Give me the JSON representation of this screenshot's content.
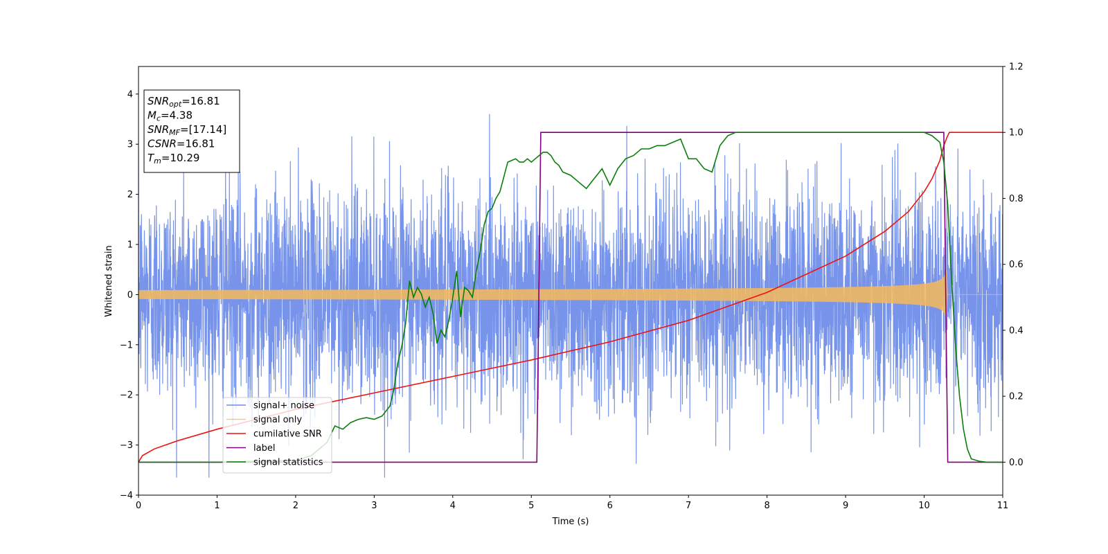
{
  "chart_data": {
    "type": "line",
    "xlabel": "Time (s)",
    "ylabel": "Whitened strain",
    "xlim": [
      0,
      11
    ],
    "ylim_left": [
      -4.0,
      4.55
    ],
    "ylim_right": [
      -0.1,
      1.2
    ],
    "x_ticks": [
      0,
      1,
      2,
      3,
      4,
      5,
      6,
      7,
      8,
      9,
      10,
      11
    ],
    "y_ticks_left": [
      -4,
      -3,
      -2,
      -1,
      0,
      1,
      2,
      3,
      4
    ],
    "y_ticks_right": [
      0.0,
      0.2,
      0.4,
      0.6,
      0.8,
      1.0,
      1.2
    ],
    "grid": false,
    "legend_position": "lower-left",
    "annotation": {
      "lines": [
        {
          "base": "SNR",
          "sub": "opt",
          "value": "=16.81"
        },
        {
          "base": "M",
          "sub": "c",
          "value": "=4.38"
        },
        {
          "base": "SNR",
          "sub": "MF",
          "value": "=[17.14]"
        },
        {
          "base": "CSNR",
          "sub": "",
          "value": "=16.81"
        },
        {
          "base": "T",
          "sub": "m",
          "value": "=10.29"
        }
      ]
    },
    "series": [
      {
        "name": "signal+ noise",
        "axis": "left",
        "color": "#6b8be8",
        "kind": "noise",
        "sigma": 1.05,
        "t_end": 11
      },
      {
        "name": "signal only",
        "axis": "left",
        "color": "#f0b860",
        "kind": "chirp",
        "t_merge": 10.29,
        "base_amplitude": 0.09,
        "peak_amplitude": 1.0
      },
      {
        "name": "cumilative SNR",
        "axis": "right",
        "color": "#ee1111",
        "x": [
          0,
          0.05,
          0.2,
          0.5,
          1,
          2,
          3,
          4,
          5,
          6,
          7,
          8,
          9,
          9.5,
          9.8,
          10,
          10.1,
          10.2,
          10.25,
          10.29,
          10.32,
          11
        ],
        "y": [
          0,
          0.02,
          0.04,
          0.065,
          0.1,
          0.16,
          0.21,
          0.26,
          0.31,
          0.365,
          0.43,
          0.515,
          0.625,
          0.7,
          0.76,
          0.82,
          0.86,
          0.915,
          0.96,
          0.985,
          1.0,
          1.0
        ]
      },
      {
        "name": "label",
        "axis": "right",
        "color": "#800080",
        "x": [
          0,
          5.07,
          5.12,
          10.25,
          10.3,
          11
        ],
        "y": [
          0,
          0,
          1,
          1,
          0,
          0
        ]
      },
      {
        "name": "signal statistics",
        "axis": "right",
        "color": "#0a7d0a",
        "x": [
          0,
          1,
          2,
          2.2,
          2.4,
          2.5,
          2.6,
          2.7,
          2.8,
          2.9,
          3.0,
          3.1,
          3.2,
          3.25,
          3.3,
          3.35,
          3.4,
          3.45,
          3.5,
          3.55,
          3.6,
          3.65,
          3.7,
          3.75,
          3.8,
          3.85,
          3.9,
          3.95,
          4.0,
          4.05,
          4.1,
          4.15,
          4.2,
          4.25,
          4.3,
          4.35,
          4.4,
          4.45,
          4.5,
          4.55,
          4.6,
          4.7,
          4.8,
          4.85,
          4.9,
          4.95,
          5.0,
          5.05,
          5.1,
          5.15,
          5.2,
          5.25,
          5.3,
          5.35,
          5.4,
          5.5,
          5.6,
          5.7,
          5.8,
          5.9,
          6.0,
          6.1,
          6.2,
          6.3,
          6.4,
          6.5,
          6.6,
          6.7,
          6.8,
          6.9,
          7.0,
          7.1,
          7.2,
          7.3,
          7.4,
          7.5,
          7.6,
          7.8,
          8.0,
          9.0,
          9.8,
          10.0,
          10.1,
          10.2,
          10.25,
          10.3,
          10.35,
          10.4,
          10.45,
          10.5,
          10.55,
          10.6,
          10.7,
          10.8,
          11.0
        ],
        "y": [
          0,
          0,
          0.005,
          0.02,
          0.06,
          0.11,
          0.1,
          0.12,
          0.13,
          0.135,
          0.13,
          0.14,
          0.17,
          0.22,
          0.3,
          0.35,
          0.42,
          0.55,
          0.5,
          0.53,
          0.51,
          0.47,
          0.5,
          0.45,
          0.36,
          0.4,
          0.38,
          0.43,
          0.5,
          0.58,
          0.44,
          0.53,
          0.52,
          0.5,
          0.58,
          0.64,
          0.72,
          0.76,
          0.77,
          0.8,
          0.82,
          0.91,
          0.92,
          0.91,
          0.91,
          0.92,
          0.91,
          0.92,
          0.93,
          0.94,
          0.94,
          0.93,
          0.91,
          0.9,
          0.88,
          0.87,
          0.85,
          0.83,
          0.86,
          0.89,
          0.84,
          0.89,
          0.92,
          0.93,
          0.95,
          0.95,
          0.96,
          0.96,
          0.97,
          0.98,
          0.92,
          0.92,
          0.89,
          0.88,
          0.96,
          0.99,
          1.0,
          1.0,
          1.0,
          1.0,
          1.0,
          1.0,
          0.99,
          0.97,
          0.91,
          0.78,
          0.55,
          0.35,
          0.2,
          0.1,
          0.04,
          0.01,
          0.003,
          0.0,
          0.0
        ]
      }
    ]
  }
}
